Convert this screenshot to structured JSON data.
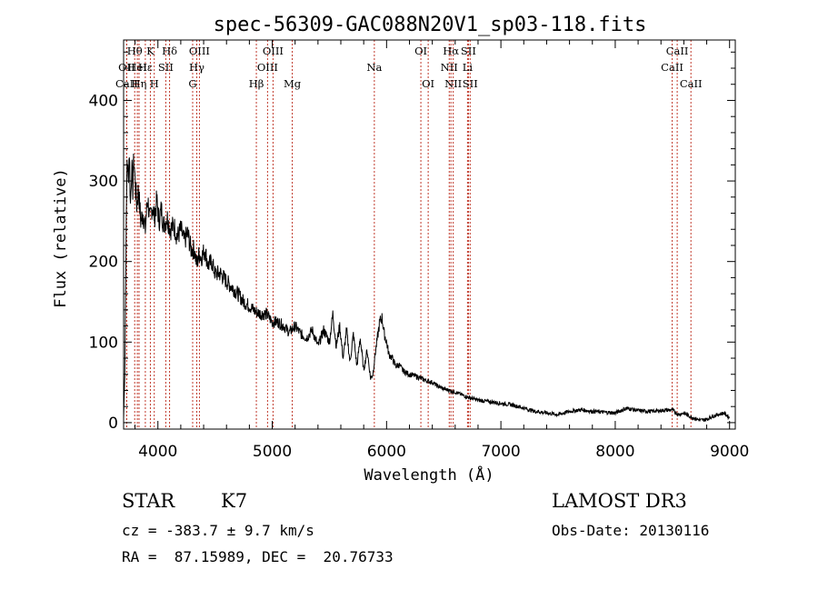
{
  "chart_data": {
    "type": "line",
    "title": "spec-56309-GAC088N20V1_sp03-118.fits",
    "xlabel": "Wavelength (Å)",
    "ylabel": "Flux (relative)",
    "xlim": [
      3700,
      9050
    ],
    "ylim": [
      -8,
      475
    ],
    "xticks": [
      4000,
      5000,
      6000,
      7000,
      8000,
      9000
    ],
    "yticks": [
      0,
      100,
      200,
      300,
      400
    ],
    "series": [
      {
        "name": "flux",
        "x": [
          3700,
          3710,
          3720,
          3730,
          3740,
          3750,
          3760,
          3770,
          3780,
          3790,
          3800,
          3815,
          3830,
          3850,
          3870,
          3890,
          3910,
          3930,
          3950,
          3970,
          3990,
          4010,
          4030,
          4050,
          4080,
          4110,
          4140,
          4170,
          4200,
          4230,
          4260,
          4290,
          4320,
          4340,
          4360,
          4380,
          4410,
          4440,
          4470,
          4500,
          4550,
          4600,
          4650,
          4700,
          4750,
          4800,
          4850,
          4900,
          4950,
          5000,
          5050,
          5100,
          5150,
          5200,
          5250,
          5300,
          5350,
          5400,
          5450,
          5500,
          5530,
          5560,
          5590,
          5620,
          5650,
          5680,
          5710,
          5740,
          5770,
          5800,
          5830,
          5860,
          5880,
          5900,
          5920,
          5940,
          5960,
          5980,
          6000,
          6020,
          6050,
          6080,
          6110,
          6140,
          6170,
          6200,
          6250,
          6300,
          6350,
          6400,
          6450,
          6500,
          6550,
          6600,
          6650,
          6700,
          6750,
          6800,
          6850,
          6900,
          6950,
          7000,
          7100,
          7200,
          7300,
          7400,
          7500,
          7600,
          7700,
          7800,
          7900,
          8000,
          8100,
          8200,
          8300,
          8400,
          8500,
          8550,
          8600,
          8650,
          8700,
          8750,
          8800,
          8850,
          8900,
          8950,
          9000
        ],
        "values": [
          5,
          60,
          200,
          330,
          300,
          340,
          270,
          320,
          290,
          330,
          300,
          270,
          290,
          250,
          260,
          240,
          280,
          250,
          270,
          255,
          275,
          250,
          265,
          245,
          255,
          240,
          245,
          230,
          240,
          225,
          235,
          215,
          215,
          195,
          210,
          205,
          215,
          195,
          200,
          185,
          185,
          175,
          168,
          160,
          150,
          145,
          138,
          135,
          135,
          125,
          125,
          120,
          112,
          120,
          110,
          105,
          115,
          95,
          115,
          100,
          135,
          95,
          120,
          80,
          115,
          75,
          110,
          70,
          105,
          65,
          90,
          55,
          60,
          85,
          105,
          125,
          130,
          110,
          100,
          85,
          80,
          70,
          72,
          65,
          62,
          60,
          58,
          55,
          52,
          50,
          45,
          42,
          40,
          38,
          35,
          32,
          30,
          28,
          27,
          26,
          25,
          24,
          22,
          18,
          14,
          12,
          10,
          14,
          16,
          14,
          13,
          12,
          18,
          15,
          14,
          15,
          16,
          10,
          12,
          8,
          5,
          3,
          4,
          8,
          10,
          12,
          6
        ]
      }
    ],
    "spectral_lines": [
      {
        "label": "Hθ",
        "x": 3797,
        "row": 1
      },
      {
        "label": "OII",
        "x": 3727,
        "row": 2
      },
      {
        "label": "CaII",
        "x": 3727,
        "row": 3
      },
      {
        "label": "HeI",
        "x": 3820,
        "row": 2
      },
      {
        "label": "Hη",
        "x": 3835,
        "row": 3
      },
      {
        "label": "Hε",
        "x": 3890,
        "row": 2
      },
      {
        "label": "K",
        "x": 3934,
        "row": 1
      },
      {
        "label": "SII",
        "x": 4069,
        "row": 2
      },
      {
        "label": "H",
        "x": 3968,
        "row": 3
      },
      {
        "label": "Hδ",
        "x": 4102,
        "row": 1
      },
      {
        "label": "OIII",
        "x": 4363,
        "row": 1
      },
      {
        "label": "Hγ",
        "x": 4340,
        "row": 2
      },
      {
        "label": "G",
        "x": 4304,
        "row": 3
      },
      {
        "label": "Hβ",
        "x": 4861,
        "row": 3
      },
      {
        "label": "OIII",
        "x": 5007,
        "row": 1
      },
      {
        "label": "OIII",
        "x": 4959,
        "row": 2
      },
      {
        "label": "Mg",
        "x": 5175,
        "row": 3
      },
      {
        "label": "Na",
        "x": 5893,
        "row": 2
      },
      {
        "label": "OI",
        "x": 6300,
        "row": 1
      },
      {
        "label": "OI",
        "x": 6364,
        "row": 3
      },
      {
        "label": "Hα",
        "x": 6563,
        "row": 1
      },
      {
        "label": "NII",
        "x": 6548,
        "row": 2
      },
      {
        "label": "NII",
        "x": 6583,
        "row": 3
      },
      {
        "label": "SII",
        "x": 6716,
        "row": 1
      },
      {
        "label": "Li",
        "x": 6708,
        "row": 2
      },
      {
        "label": "SII",
        "x": 6731,
        "row": 3
      },
      {
        "label": "CaII",
        "x": 8542,
        "row": 1
      },
      {
        "label": "CaII",
        "x": 8498,
        "row": 2
      },
      {
        "label": "CaII",
        "x": 8662,
        "row": 3
      }
    ]
  },
  "info": {
    "object_class": "STAR",
    "subclass": "K7",
    "cz": "cz = -383.7 ± 9.7 km/s",
    "coords": "RA =  87.15989, DEC =  20.76733",
    "survey": "LAMOST DR3",
    "obs_date": "Obs-Date: 20130116"
  },
  "colors": {
    "line": "#000000",
    "marker": "#c0392b"
  }
}
